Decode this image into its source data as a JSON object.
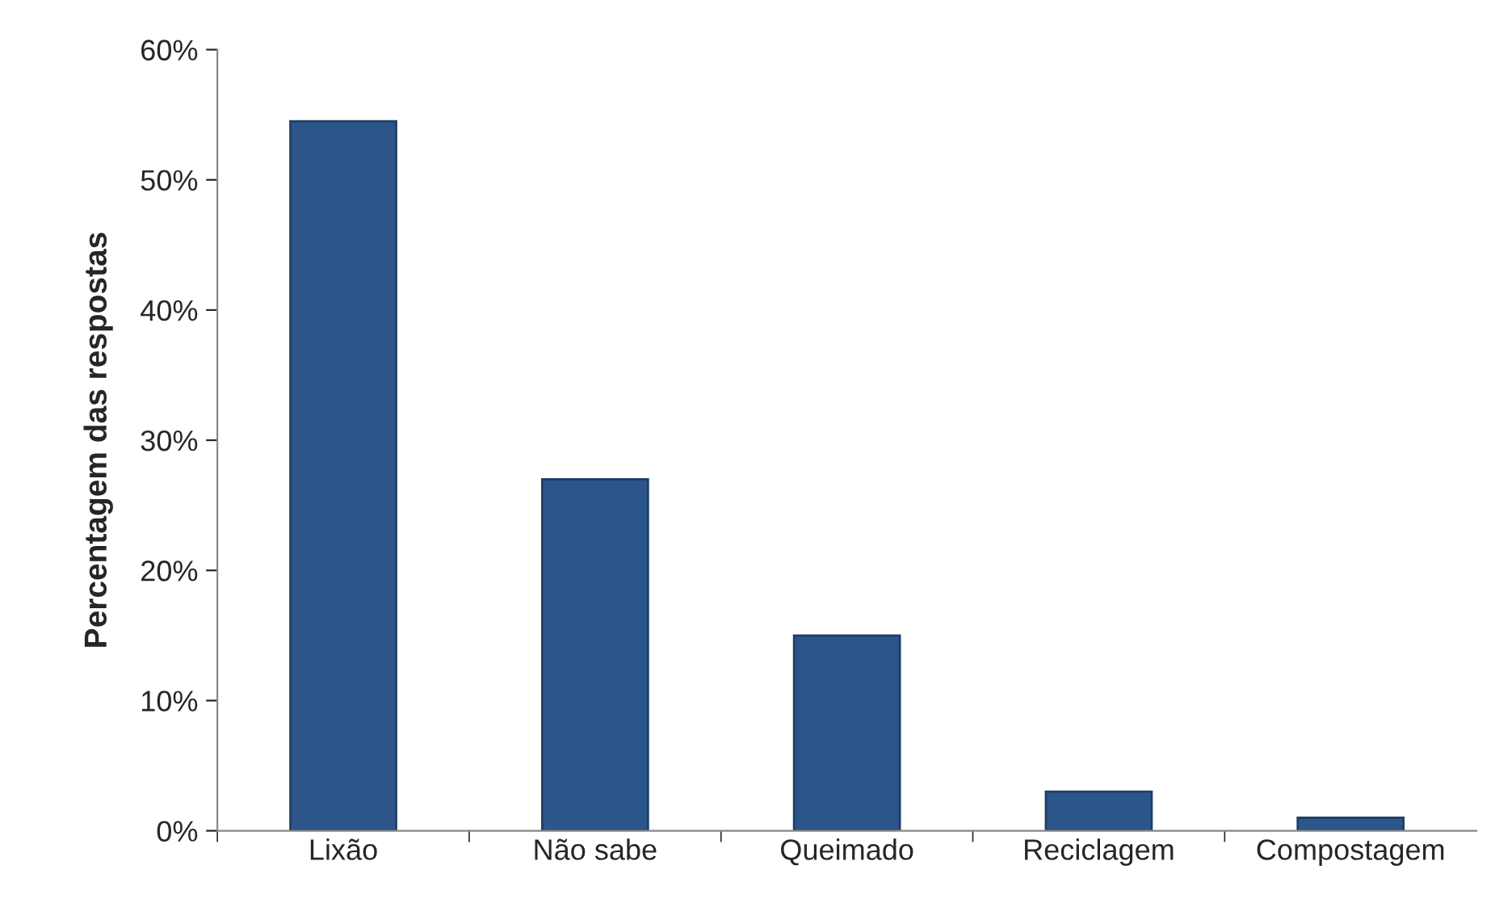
{
  "chart_data": {
    "type": "bar",
    "ylabel": "Percentagem das respostas",
    "categories": [
      "Lixão",
      "Não sabe",
      "Queimado",
      "Reciclagem",
      "Compostagem"
    ],
    "values": [
      54.5,
      27,
      15,
      3,
      1
    ],
    "color": "#2c5589",
    "ylim": [
      0,
      60
    ],
    "yticks": [
      {
        "value": 0,
        "label": "0%"
      },
      {
        "value": 10,
        "label": "10%"
      },
      {
        "value": 20,
        "label": "20%"
      },
      {
        "value": 30,
        "label": "30%"
      },
      {
        "value": 40,
        "label": "40%"
      },
      {
        "value": 50,
        "label": "50%"
      },
      {
        "value": 60,
        "label": "60%"
      }
    ],
    "grid": false
  }
}
